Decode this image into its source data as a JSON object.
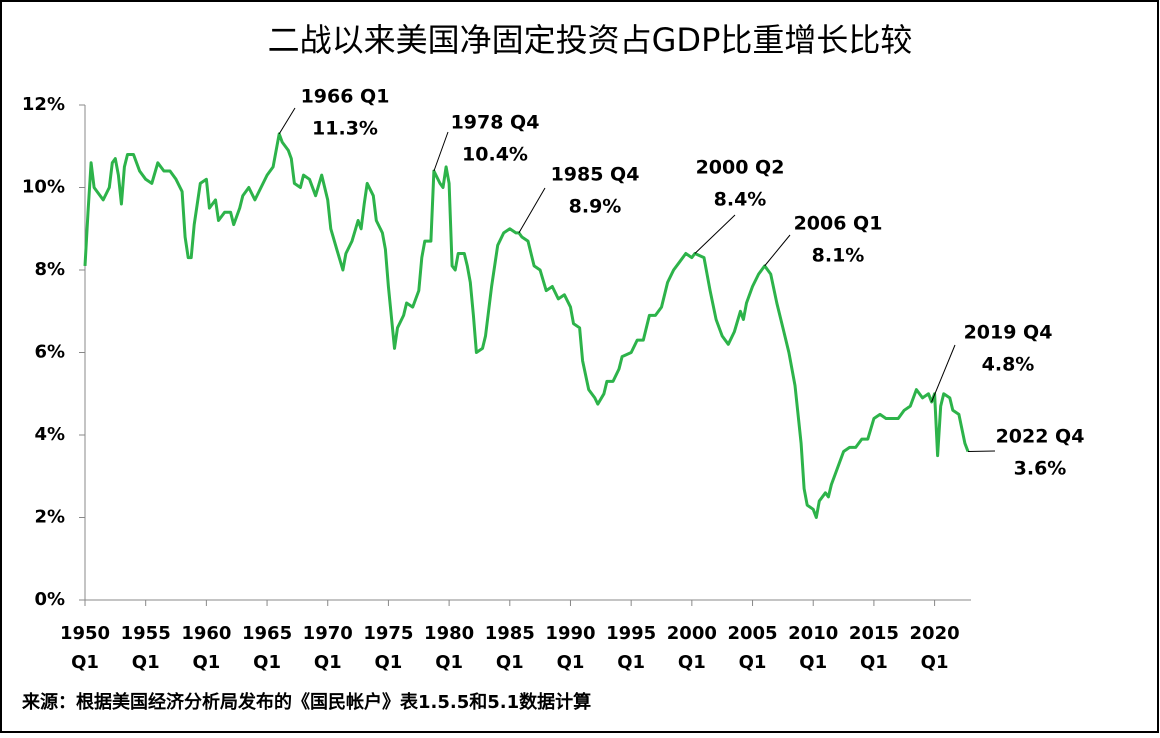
{
  "chart_data": {
    "type": "line",
    "title": "二战以来美国净固定投资占GDP比重增长比较",
    "source": "来源：根据美国经济分析局发布的《国民帐户》表1.5.5和5.1数据计算",
    "color": "#2db34a",
    "xlim": [
      1950,
      2023
    ],
    "ylim": [
      0,
      12
    ],
    "yticks": [
      {
        "value": 0,
        "label": "0%"
      },
      {
        "value": 2,
        "label": "2%"
      },
      {
        "value": 4,
        "label": "4%"
      },
      {
        "value": 6,
        "label": "6%"
      },
      {
        "value": 8,
        "label": "8%"
      },
      {
        "value": 10,
        "label": "10%"
      },
      {
        "value": 12,
        "label": "12%"
      }
    ],
    "xticks": [
      {
        "value": 1950,
        "label": "1950",
        "sublabel": "Q1"
      },
      {
        "value": 1955,
        "label": "1955",
        "sublabel": "Q1"
      },
      {
        "value": 1960,
        "label": "1960",
        "sublabel": "Q1"
      },
      {
        "value": 1965,
        "label": "1965",
        "sublabel": "Q1"
      },
      {
        "value": 1970,
        "label": "1970",
        "sublabel": "Q1"
      },
      {
        "value": 1975,
        "label": "1975",
        "sublabel": "Q1"
      },
      {
        "value": 1980,
        "label": "1980",
        "sublabel": "Q1"
      },
      {
        "value": 1985,
        "label": "1985",
        "sublabel": "Q1"
      },
      {
        "value": 1990,
        "label": "1990",
        "sublabel": "Q1"
      },
      {
        "value": 1995,
        "label": "1995",
        "sublabel": "Q1"
      },
      {
        "value": 2000,
        "label": "2000",
        "sublabel": "Q1"
      },
      {
        "value": 2005,
        "label": "2005",
        "sublabel": "Q1"
      },
      {
        "value": 2010,
        "label": "2010",
        "sublabel": "Q1"
      },
      {
        "value": 2015,
        "label": "2015",
        "sublabel": "Q1"
      },
      {
        "value": 2020,
        "label": "2020",
        "sublabel": "Q1"
      }
    ],
    "x": [
      1950.0,
      1950.25,
      1950.5,
      1950.75,
      1951.0,
      1951.5,
      1952.0,
      1952.25,
      1952.5,
      1952.75,
      1953.0,
      1953.25,
      1953.5,
      1954.0,
      1954.5,
      1955.0,
      1955.5,
      1956.0,
      1956.5,
      1957.0,
      1957.5,
      1958.0,
      1958.25,
      1958.5,
      1958.75,
      1959.0,
      1959.5,
      1960.0,
      1960.25,
      1960.75,
      1961.0,
      1961.5,
      1962.0,
      1962.25,
      1962.75,
      1963.0,
      1963.5,
      1964.0,
      1964.5,
      1965.0,
      1965.5,
      1966.0,
      1966.25,
      1966.75,
      1967.0,
      1967.25,
      1967.75,
      1968.0,
      1968.5,
      1969.0,
      1969.5,
      1970.0,
      1970.25,
      1970.75,
      1971.25,
      1971.5,
      1972.0,
      1972.5,
      1972.75,
      1973.0,
      1973.25,
      1973.75,
      1974.0,
      1974.5,
      1974.75,
      1975.0,
      1975.5,
      1975.75,
      1976.25,
      1976.5,
      1977.0,
      1977.5,
      1977.75,
      1978.0,
      1978.5,
      1978.75,
      1979.25,
      1979.5,
      1979.75,
      1980.0,
      1980.25,
      1980.5,
      1980.75,
      1981.25,
      1981.5,
      1981.75,
      1982.0,
      1982.25,
      1982.75,
      1983.0,
      1983.5,
      1984.0,
      1984.5,
      1985.0,
      1985.5,
      1985.75,
      1986.0,
      1986.5,
      1987.0,
      1987.5,
      1988.0,
      1988.5,
      1989.0,
      1989.5,
      1990.0,
      1990.25,
      1990.75,
      1991.0,
      1991.5,
      1992.0,
      1992.25,
      1992.75,
      1993.0,
      1993.5,
      1994.0,
      1994.25,
      1995.0,
      1995.5,
      1996.0,
      1996.5,
      1997.0,
      1997.5,
      1998.0,
      1998.5,
      1999.0,
      1999.5,
      2000.0,
      2000.25,
      2001.0,
      2001.5,
      2002.0,
      2002.5,
      2003.0,
      2003.5,
      2004.0,
      2004.25,
      2004.5,
      2005.0,
      2005.5,
      2006.0,
      2006.5,
      2007.0,
      2007.5,
      2008.0,
      2008.5,
      2009.0,
      2009.25,
      2009.5,
      2010.0,
      2010.25,
      2010.5,
      2011.0,
      2011.25,
      2011.5,
      2012.0,
      2012.5,
      2013.0,
      2013.5,
      2014.0,
      2014.5,
      2015.0,
      2015.5,
      2016.0,
      2016.5,
      2017.0,
      2017.5,
      2018.0,
      2018.5,
      2019.0,
      2019.5,
      2019.75,
      2020.0,
      2020.25,
      2020.5,
      2020.75,
      2021.25,
      2021.5,
      2022.0,
      2022.5,
      2022.75
    ],
    "values": [
      8.1,
      9.4,
      10.6,
      10.0,
      9.9,
      9.7,
      10.0,
      10.6,
      10.7,
      10.3,
      9.6,
      10.5,
      10.8,
      10.8,
      10.4,
      10.2,
      10.1,
      10.6,
      10.4,
      10.4,
      10.2,
      9.9,
      8.8,
      8.3,
      8.3,
      9.1,
      10.1,
      10.2,
      9.5,
      9.7,
      9.2,
      9.4,
      9.4,
      9.1,
      9.5,
      9.8,
      10.0,
      9.7,
      10.0,
      10.3,
      10.5,
      11.3,
      11.1,
      10.9,
      10.7,
      10.1,
      10.0,
      10.3,
      10.2,
      9.8,
      10.3,
      9.7,
      9.0,
      8.5,
      8.0,
      8.4,
      8.7,
      9.2,
      9.0,
      9.6,
      10.1,
      9.8,
      9.2,
      8.9,
      8.5,
      7.6,
      6.1,
      6.6,
      6.9,
      7.2,
      7.1,
      7.5,
      8.3,
      8.7,
      8.7,
      10.4,
      10.1,
      10.0,
      10.5,
      10.1,
      8.1,
      8.0,
      8.4,
      8.4,
      8.1,
      7.7,
      6.9,
      6.0,
      6.1,
      6.4,
      7.6,
      8.6,
      8.9,
      9.0,
      8.9,
      8.9,
      8.8,
      8.7,
      8.1,
      8.0,
      7.5,
      7.6,
      7.3,
      7.4,
      7.1,
      6.7,
      6.6,
      5.8,
      5.1,
      4.9,
      4.75,
      5.0,
      5.3,
      5.3,
      5.6,
      5.9,
      6.0,
      6.3,
      6.3,
      6.9,
      6.9,
      7.1,
      7.7,
      8.0,
      8.2,
      8.4,
      8.3,
      8.4,
      8.3,
      7.5,
      6.8,
      6.4,
      6.2,
      6.5,
      7.0,
      6.8,
      7.2,
      7.6,
      7.9,
      8.1,
      7.9,
      7.2,
      6.6,
      6.0,
      5.2,
      3.8,
      2.7,
      2.3,
      2.2,
      2.0,
      2.4,
      2.6,
      2.5,
      2.8,
      3.2,
      3.6,
      3.7,
      3.7,
      3.9,
      3.9,
      4.4,
      4.5,
      4.4,
      4.4,
      4.4,
      4.6,
      4.7,
      5.1,
      4.9,
      5.0,
      4.8,
      5.0,
      3.5,
      4.7,
      5.0,
      4.9,
      4.6,
      4.5,
      3.8,
      3.6
    ],
    "annotations": [
      {
        "label": "1966 Q1",
        "value_label": "11.3%",
        "x": 1966.0,
        "y": 11.3
      },
      {
        "label": "1978 Q4",
        "value_label": "10.4%",
        "x": 1978.75,
        "y": 10.4
      },
      {
        "label": "1985 Q4",
        "value_label": "8.9%",
        "x": 1985.75,
        "y": 8.9
      },
      {
        "label": "2000 Q2",
        "value_label": "8.4%",
        "x": 2000.25,
        "y": 8.4
      },
      {
        "label": "2006 Q1",
        "value_label": "8.1%",
        "x": 2006.0,
        "y": 8.1
      },
      {
        "label": "2019 Q4",
        "value_label": "4.8%",
        "x": 2019.75,
        "y": 4.8
      },
      {
        "label": "2022 Q4",
        "value_label": "3.6%",
        "x": 2022.75,
        "y": 3.6
      }
    ]
  }
}
